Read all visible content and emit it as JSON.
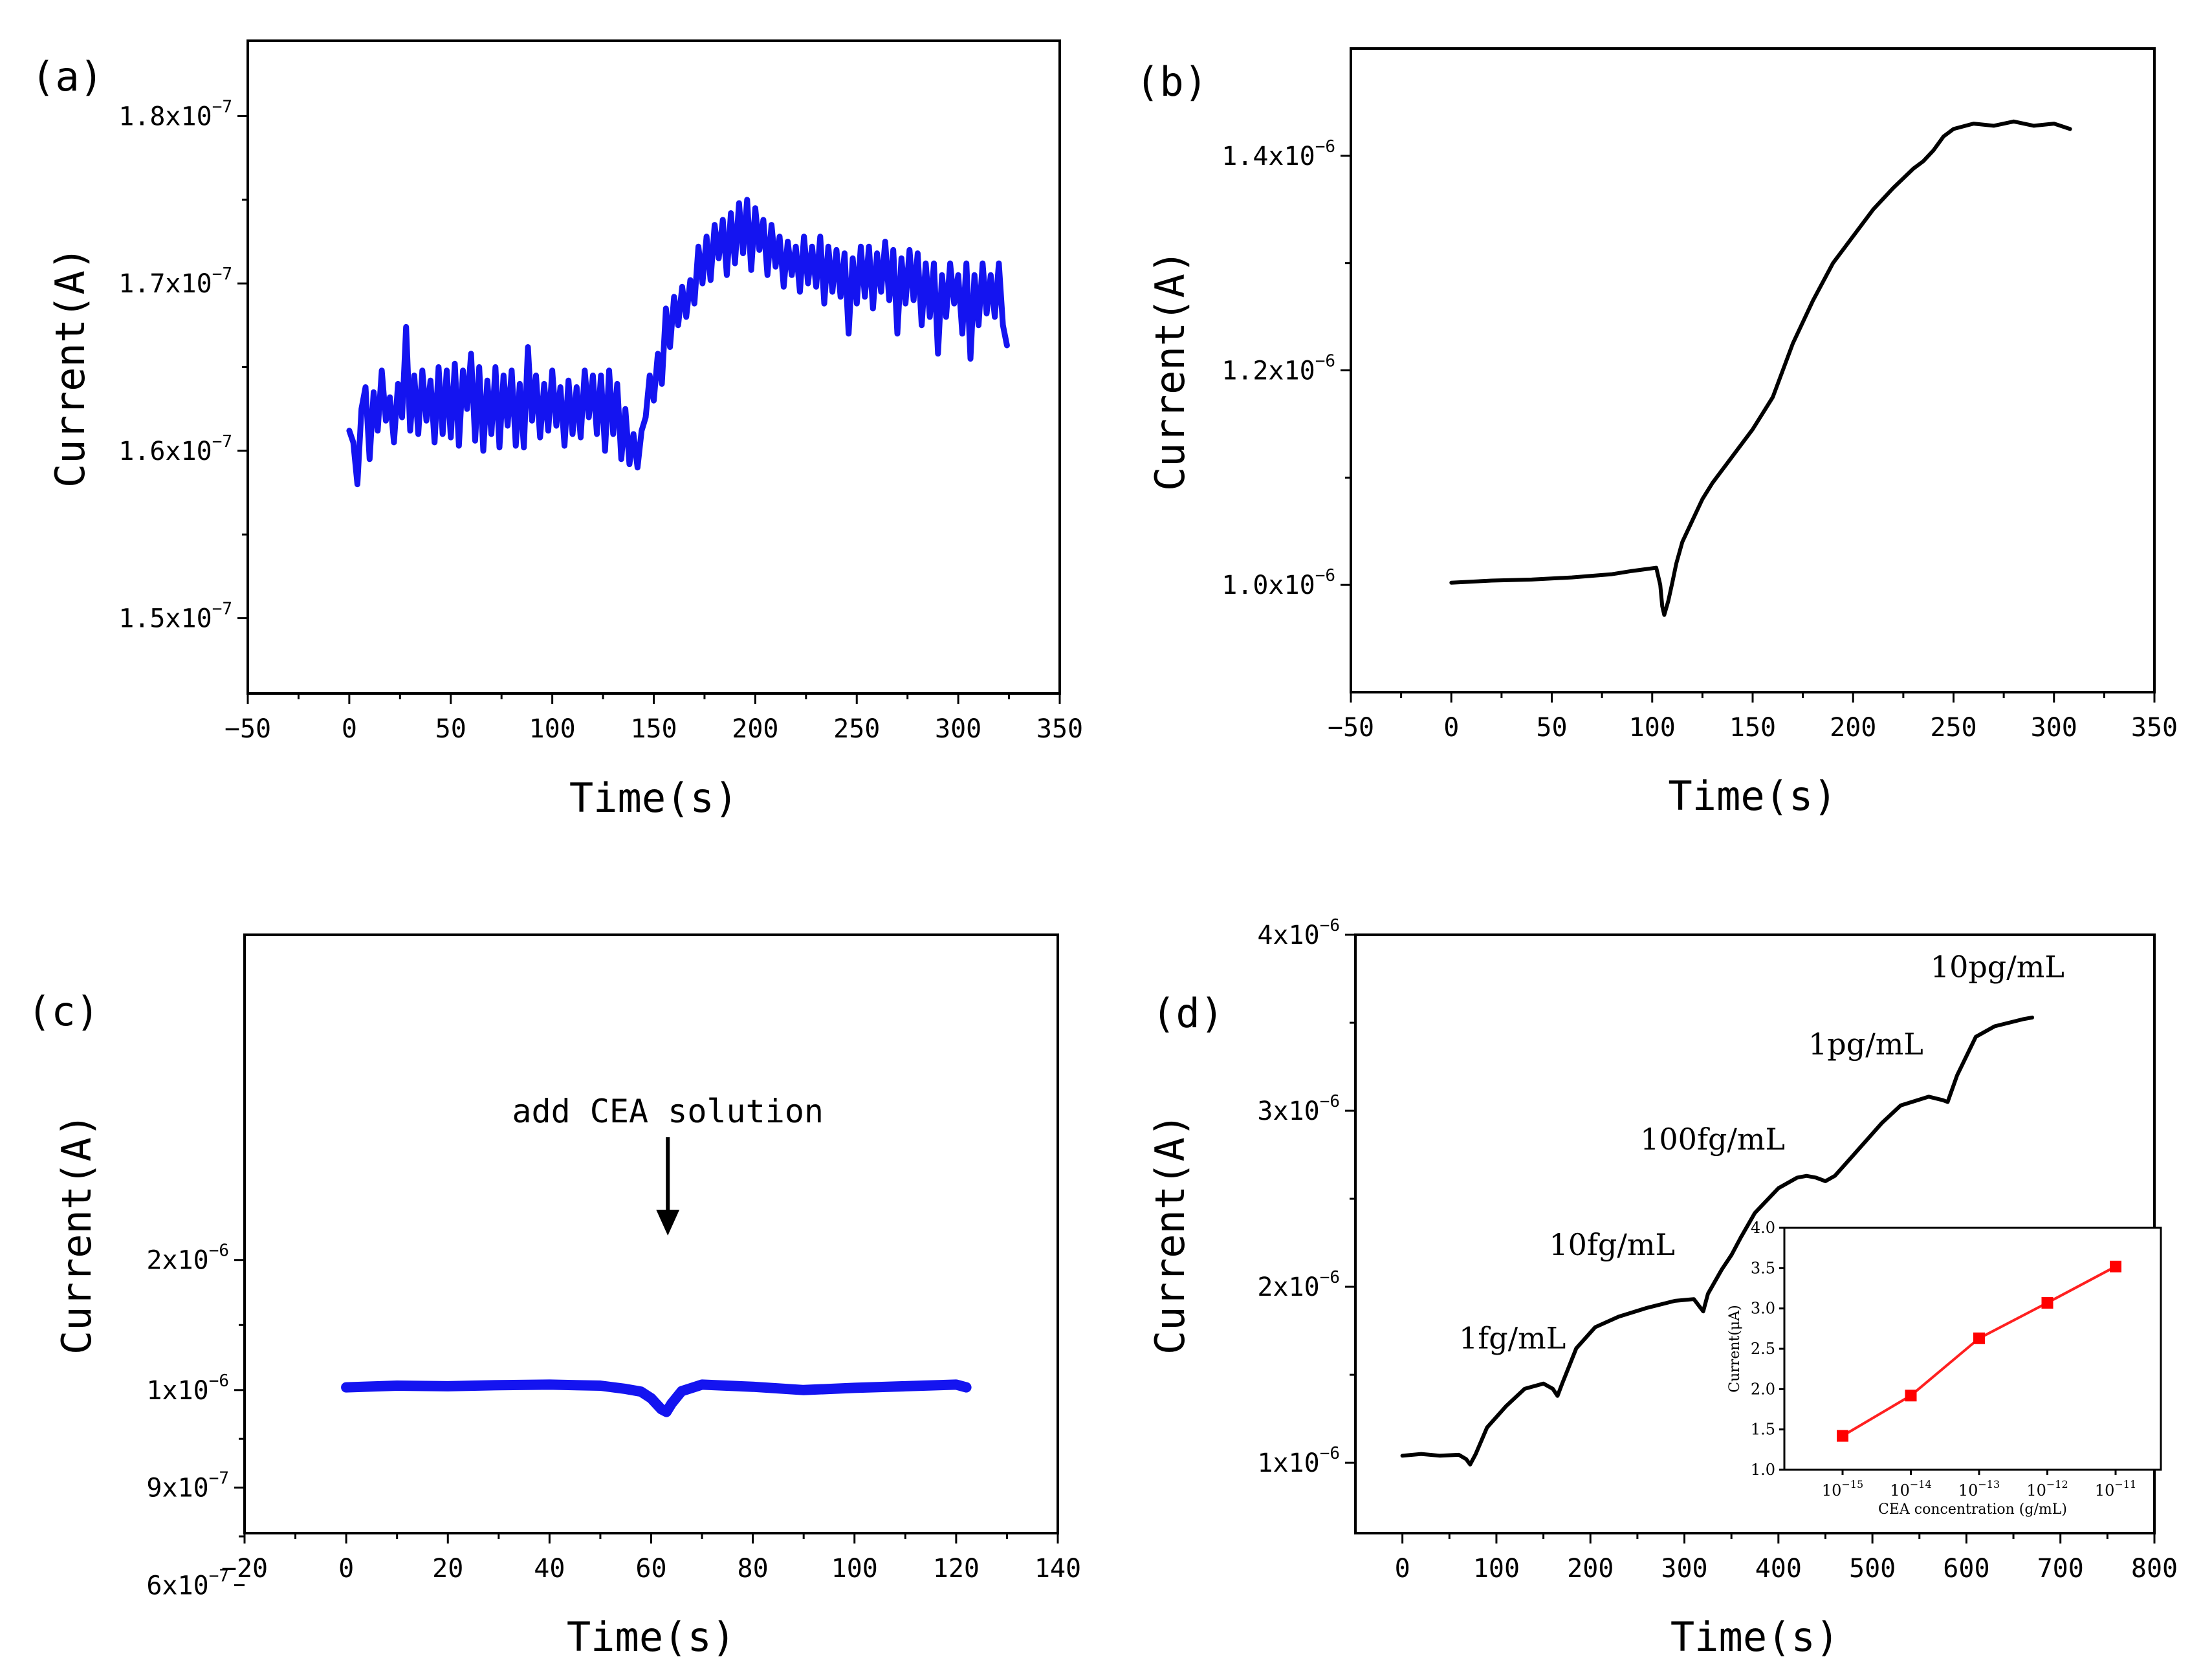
{
  "chart_data": [
    {
      "id": "a",
      "type": "line",
      "panel_label": "(a)",
      "xlabel": "Time(s)",
      "ylabel": "Current(A)",
      "xlim": [
        -50,
        350
      ],
      "ylim": [
        1.455e-07,
        1.845e-07
      ],
      "xticks": [
        -50,
        0,
        50,
        100,
        150,
        200,
        250,
        300,
        350
      ],
      "xtick_labels": [
        "−50",
        "0",
        "50",
        "100",
        "150",
        "200",
        "250",
        "300",
        "350"
      ],
      "yticks": [
        1.5e-07,
        1.6e-07,
        1.7e-07,
        1.8e-07
      ],
      "ytick_labels": [
        {
          "mantissa": "1.5x10",
          "exp": "−7"
        },
        {
          "mantissa": "1.6x10",
          "exp": "−7"
        },
        {
          "mantissa": "1.7x10",
          "exp": "−7"
        },
        {
          "mantissa": "1.8x10",
          "exp": "−7"
        }
      ],
      "line_color": "#1414f0",
      "series": [
        {
          "name": "current",
          "x": [
            0,
            2,
            4,
            6,
            8,
            10,
            12,
            14,
            16,
            18,
            20,
            22,
            24,
            26,
            28,
            30,
            32,
            34,
            36,
            38,
            40,
            42,
            44,
            46,
            48,
            50,
            52,
            54,
            56,
            58,
            60,
            62,
            64,
            66,
            68,
            70,
            72,
            74,
            76,
            78,
            80,
            82,
            84,
            86,
            88,
            90,
            92,
            94,
            96,
            98,
            100,
            102,
            104,
            106,
            108,
            110,
            112,
            114,
            116,
            118,
            120,
            122,
            124,
            126,
            128,
            130,
            132,
            134,
            136,
            138,
            140,
            142,
            144,
            146,
            148,
            150,
            152,
            154,
            156,
            158,
            160,
            162,
            164,
            166,
            168,
            170,
            172,
            174,
            176,
            178,
            180,
            182,
            184,
            186,
            188,
            190,
            192,
            194,
            196,
            198,
            200,
            202,
            204,
            206,
            208,
            210,
            212,
            214,
            216,
            218,
            220,
            222,
            224,
            226,
            228,
            230,
            232,
            234,
            236,
            238,
            240,
            242,
            244,
            246,
            248,
            250,
            252,
            254,
            256,
            258,
            260,
            262,
            264,
            266,
            268,
            270,
            272,
            274,
            276,
            278,
            280,
            282,
            284,
            286,
            288,
            290,
            292,
            294,
            296,
            298,
            300,
            302,
            304,
            306,
            308,
            310,
            312,
            314,
            316,
            318,
            320,
            322,
            324
          ],
          "y": [
            1.612e-07,
            1.605e-07,
            1.58e-07,
            1.625e-07,
            1.638e-07,
            1.595e-07,
            1.635e-07,
            1.612e-07,
            1.648e-07,
            1.618e-07,
            1.632e-07,
            1.605e-07,
            1.64e-07,
            1.62e-07,
            1.674e-07,
            1.612e-07,
            1.645e-07,
            1.61e-07,
            1.648e-07,
            1.618e-07,
            1.642e-07,
            1.605e-07,
            1.65e-07,
            1.61e-07,
            1.648e-07,
            1.608e-07,
            1.652e-07,
            1.603e-07,
            1.648e-07,
            1.625e-07,
            1.658e-07,
            1.606e-07,
            1.65e-07,
            1.6e-07,
            1.642e-07,
            1.61e-07,
            1.65e-07,
            1.602e-07,
            1.645e-07,
            1.615e-07,
            1.648e-07,
            1.603e-07,
            1.64e-07,
            1.602e-07,
            1.662e-07,
            1.618e-07,
            1.645e-07,
            1.608e-07,
            1.64e-07,
            1.612e-07,
            1.648e-07,
            1.615e-07,
            1.638e-07,
            1.603e-07,
            1.642e-07,
            1.61e-07,
            1.638e-07,
            1.608e-07,
            1.648e-07,
            1.62e-07,
            1.645e-07,
            1.61e-07,
            1.645e-07,
            1.6e-07,
            1.648e-07,
            1.61e-07,
            1.64e-07,
            1.595e-07,
            1.625e-07,
            1.592e-07,
            1.61e-07,
            1.59e-07,
            1.612e-07,
            1.62e-07,
            1.645e-07,
            1.63e-07,
            1.658e-07,
            1.64e-07,
            1.685e-07,
            1.662e-07,
            1.692e-07,
            1.675e-07,
            1.698e-07,
            1.68e-07,
            1.702e-07,
            1.688e-07,
            1.722e-07,
            1.7e-07,
            1.728e-07,
            1.702e-07,
            1.735e-07,
            1.715e-07,
            1.738e-07,
            1.705e-07,
            1.742e-07,
            1.712e-07,
            1.748e-07,
            1.718e-07,
            1.75e-07,
            1.708e-07,
            1.745e-07,
            1.72e-07,
            1.738e-07,
            1.705e-07,
            1.735e-07,
            1.71e-07,
            1.728e-07,
            1.698e-07,
            1.725e-07,
            1.705e-07,
            1.722e-07,
            1.695e-07,
            1.728e-07,
            1.7e-07,
            1.722e-07,
            1.698e-07,
            1.728e-07,
            1.688e-07,
            1.722e-07,
            1.695e-07,
            1.72e-07,
            1.692e-07,
            1.718e-07,
            1.67e-07,
            1.715e-07,
            1.688e-07,
            1.722e-07,
            1.692e-07,
            1.722e-07,
            1.685e-07,
            1.718e-07,
            1.695e-07,
            1.725e-07,
            1.69e-07,
            1.72e-07,
            1.67e-07,
            1.715e-07,
            1.688e-07,
            1.72e-07,
            1.69e-07,
            1.718e-07,
            1.675e-07,
            1.712e-07,
            1.68e-07,
            1.712e-07,
            1.658e-07,
            1.705e-07,
            1.68e-07,
            1.712e-07,
            1.688e-07,
            1.705e-07,
            1.67e-07,
            1.712e-07,
            1.655e-07,
            1.705e-07,
            1.675e-07,
            1.712e-07,
            1.682e-07,
            1.705e-07,
            1.68e-07,
            1.712e-07,
            1.675e-07,
            1.663e-07
          ]
        }
      ]
    },
    {
      "id": "b",
      "type": "line",
      "panel_label": "(b)",
      "xlabel": "Time(s)",
      "ylabel": "Current(A)",
      "xlim": [
        -50,
        350
      ],
      "ylim": [
        9e-07,
        1.5e-06
      ],
      "xticks": [
        -50,
        0,
        50,
        100,
        150,
        200,
        250,
        300,
        350
      ],
      "xtick_labels": [
        "−50",
        "0",
        "50",
        "100",
        "150",
        "200",
        "250",
        "300",
        "350"
      ],
      "yticks": [
        1e-06,
        1.2e-06,
        1.4e-06
      ],
      "ytick_labels": [
        {
          "mantissa": "1.0x10",
          "exp": "−6"
        },
        {
          "mantissa": "1.2x10",
          "exp": "−6"
        },
        {
          "mantissa": "1.4x10",
          "exp": "−6"
        }
      ],
      "line_color": "#000000",
      "series": [
        {
          "name": "current",
          "x": [
            0,
            20,
            40,
            60,
            80,
            90,
            98,
            102,
            104,
            105,
            106,
            108,
            110,
            112,
            115,
            120,
            125,
            130,
            140,
            150,
            160,
            170,
            180,
            190,
            200,
            210,
            220,
            230,
            235,
            240,
            245,
            250,
            260,
            270,
            280,
            290,
            300,
            308
          ],
          "y": [
            1.002e-06,
            1.004e-06,
            1.005e-06,
            1.007e-06,
            1.01e-06,
            1.013e-06,
            1.015e-06,
            1.016e-06,
            1e-06,
            9.8e-07,
            9.72e-07,
            9.85e-07,
            1.002e-06,
            1.02e-06,
            1.04e-06,
            1.06e-06,
            1.08e-06,
            1.095e-06,
            1.12e-06,
            1.145e-06,
            1.175e-06,
            1.225e-06,
            1.265e-06,
            1.3e-06,
            1.325e-06,
            1.35e-06,
            1.37e-06,
            1.388e-06,
            1.395e-06,
            1.405e-06,
            1.418e-06,
            1.425e-06,
            1.43e-06,
            1.428e-06,
            1.432e-06,
            1.428e-06,
            1.43e-06,
            1.425e-06
          ]
        }
      ]
    },
    {
      "id": "c",
      "type": "line",
      "panel_label": "(c)",
      "xlabel": "Time(s)",
      "ylabel": "Current(A)",
      "xlim": [
        -20,
        140
      ],
      "ylim": [
        4.6e-07,
        2.3e-06
      ],
      "xticks": [
        -20,
        0,
        20,
        40,
        60,
        80,
        100,
        120,
        140
      ],
      "xtick_labels": [
        "−20",
        "0",
        "20",
        "40",
        "60",
        "80",
        "100",
        "120",
        "140"
      ],
      "yticks": [
        6e-07,
        9e-07,
        1e-06,
        2e-06
      ],
      "ytick_labels": [
        {
          "mantissa": "6x10",
          "exp": "−7"
        },
        {
          "mantissa": "9x10",
          "exp": "−7"
        },
        {
          "mantissa": "1x10",
          "exp": "−6"
        },
        {
          "mantissa": "2x10",
          "exp": "−6"
        }
      ],
      "ytick_pixel_map": [
        1.3e-06,
        9e-07,
        6e-07,
        3e-07
      ],
      "line_color": "#1414f0",
      "annotation": {
        "text": "add CEA solution",
        "x": 62
      },
      "series": [
        {
          "name": "current",
          "x": [
            0,
            10,
            20,
            30,
            40,
            50,
            55,
            58,
            60,
            62,
            63,
            64,
            66,
            70,
            80,
            90,
            100,
            110,
            120,
            122
          ],
          "y": [
            1.005e-06,
            1.008e-06,
            1.007e-06,
            1.009e-06,
            1.01e-06,
            1.008e-06,
            1.002e-06,
            9.97e-07,
            9.85e-07,
            9.65e-07,
            9.6e-07,
            9.75e-07,
            9.98e-07,
            1.01e-06,
            1.006e-06,
            1e-06,
            1.004e-06,
            1.007e-06,
            1.01e-06,
            1.005e-06
          ]
        }
      ]
    },
    {
      "id": "d",
      "type": "line",
      "panel_label": "(d)",
      "xlabel": "Time(s)",
      "ylabel": "Current(A)",
      "xlim": [
        -50,
        800
      ],
      "ylim": [
        6e-07,
        4e-06
      ],
      "xticks": [
        0,
        100,
        200,
        300,
        400,
        500,
        600,
        700,
        800
      ],
      "xtick_labels": [
        "0",
        "100",
        "200",
        "300",
        "400",
        "500",
        "600",
        "700",
        "800"
      ],
      "yticks": [
        1e-06,
        2e-06,
        3e-06,
        4e-06
      ],
      "ytick_labels": [
        {
          "mantissa": "1x10",
          "exp": "−6"
        },
        {
          "mantissa": "2x10",
          "exp": "−6"
        },
        {
          "mantissa": "3x10",
          "exp": "−6"
        },
        {
          "mantissa": "4x10",
          "exp": "−6"
        }
      ],
      "line_color": "#000000",
      "concentration_labels": [
        {
          "text": "1fg/mL",
          "x": 117,
          "y": 1.65e-06
        },
        {
          "text": "10fg/mL",
          "x": 223,
          "y": 2.18e-06
        },
        {
          "text": "100fg/mL",
          "x": 330,
          "y": 2.78e-06
        },
        {
          "text": "1pg/mL",
          "x": 493,
          "y": 3.32e-06
        },
        {
          "text": "10pg/mL",
          "x": 633,
          "y": 3.76e-06
        }
      ],
      "series": [
        {
          "name": "current",
          "x": [
            0,
            20,
            40,
            60,
            68,
            72,
            78,
            90,
            110,
            130,
            150,
            160,
            165,
            170,
            185,
            205,
            230,
            260,
            290,
            310,
            320,
            325,
            340,
            350,
            360,
            375,
            400,
            420,
            430,
            440,
            450,
            460,
            480,
            510,
            530,
            560,
            575,
            580,
            590,
            610,
            630,
            660,
            670
          ],
          "y": [
            1.04e-06,
            1.05e-06,
            1.04e-06,
            1.045e-06,
            1.02e-06,
            9.9e-07,
            1.05e-06,
            1.2e-06,
            1.32e-06,
            1.42e-06,
            1.45e-06,
            1.42e-06,
            1.38e-06,
            1.45e-06,
            1.65e-06,
            1.77e-06,
            1.83e-06,
            1.88e-06,
            1.92e-06,
            1.93e-06,
            1.86e-06,
            1.96e-06,
            2.1e-06,
            2.18e-06,
            2.28e-06,
            2.42e-06,
            2.56e-06,
            2.62e-06,
            2.63e-06,
            2.62e-06,
            2.6e-06,
            2.63e-06,
            2.75e-06,
            2.93e-06,
            3.03e-06,
            3.08e-06,
            3.06e-06,
            3.05e-06,
            3.2e-06,
            3.42e-06,
            3.48e-06,
            3.52e-06,
            3.53e-06
          ]
        }
      ],
      "inset": {
        "type": "line",
        "xlabel": "CEA concentration (g/mL)",
        "ylabel": "Current(μA)",
        "ylim": [
          1.0,
          4.0
        ],
        "yticks": [
          1.0,
          1.5,
          2.0,
          2.5,
          3.0,
          3.5,
          4.0
        ],
        "ytick_labels": [
          "1.0",
          "1.5",
          "2.0",
          "2.5",
          "3.0",
          "3.5",
          "4.0"
        ],
        "categories": [
          "10^-15",
          "10^-14",
          "10^-13",
          "10^-12",
          "10^-11"
        ],
        "xtick_labels": [
          {
            "mantissa": "10",
            "exp": "−15"
          },
          {
            "mantissa": "10",
            "exp": "−14"
          },
          {
            "mantissa": "10",
            "exp": "−13"
          },
          {
            "mantissa": "10",
            "exp": "−12"
          },
          {
            "mantissa": "10",
            "exp": "−11"
          }
        ],
        "values": [
          1.42,
          1.92,
          2.63,
          3.07,
          3.52
        ],
        "line_color": "#ff2020",
        "marker_color": "#ff0000"
      }
    }
  ]
}
